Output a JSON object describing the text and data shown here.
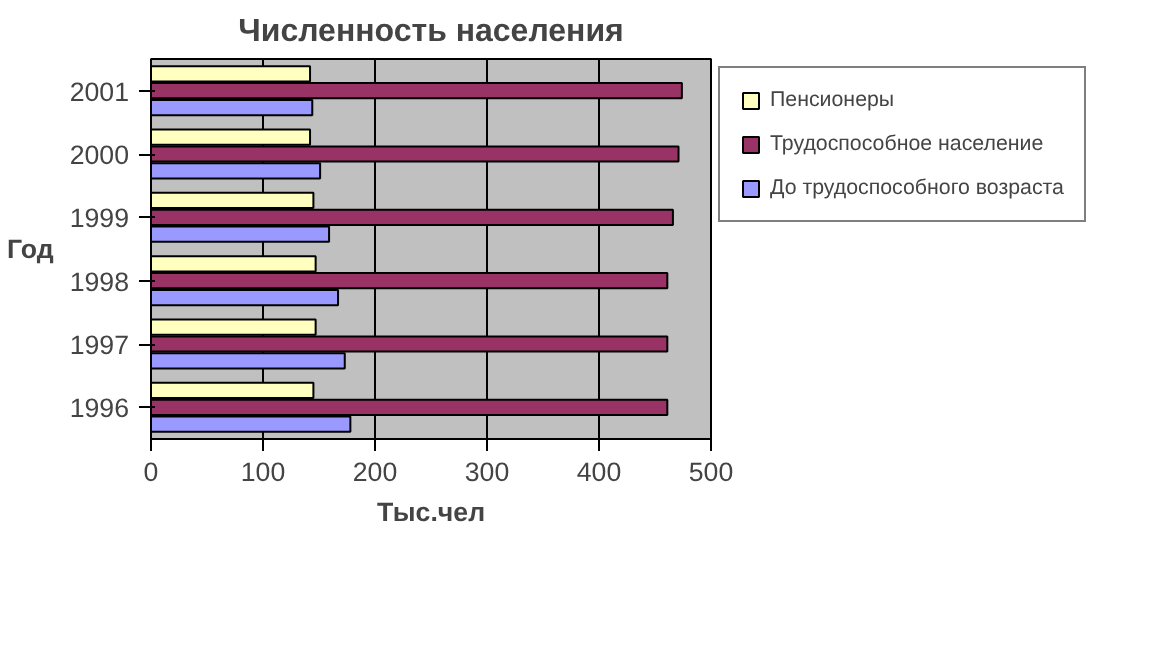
{
  "chart_data": {
    "type": "bar",
    "orientation": "horizontal",
    "title": "Численность населения",
    "xlabel": "Тыс.чел",
    "ylabel": "Год",
    "categories": [
      "2001",
      "2000",
      "1999",
      "1998",
      "1997",
      "1996"
    ],
    "series": [
      {
        "name": "Пенсионеры",
        "color": "#ffffc0",
        "values": [
          142,
          142,
          145,
          147,
          147,
          145
        ]
      },
      {
        "name": "Трудоспособное население",
        "color": "#993366",
        "values": [
          474,
          471,
          466,
          461,
          461,
          461
        ]
      },
      {
        "name": "До трудоспособного возраста",
        "color": "#9999ff",
        "values": [
          144,
          151,
          159,
          167,
          173,
          178
        ]
      }
    ],
    "xlim": [
      0,
      500
    ],
    "xticks": [
      0,
      100,
      200,
      300,
      400,
      500
    ],
    "grid": "x",
    "legend": "right"
  }
}
